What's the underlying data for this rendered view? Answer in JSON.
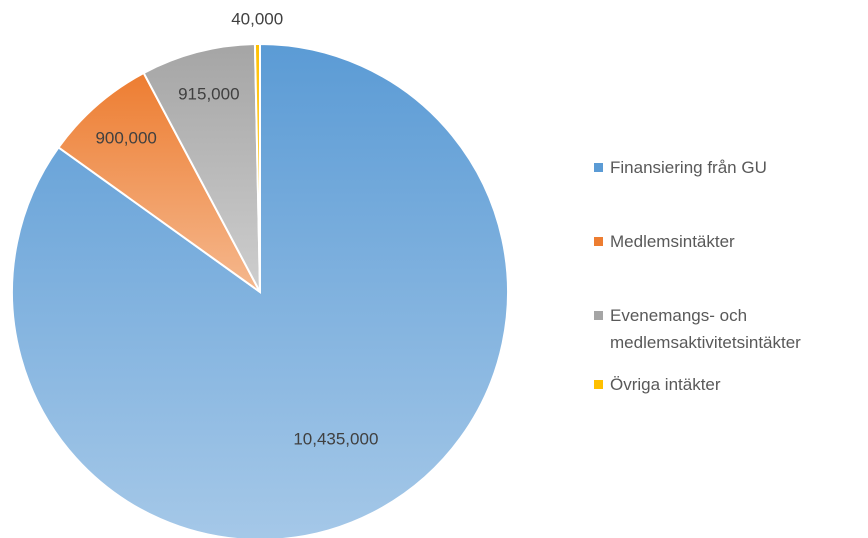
{
  "chart_data": {
    "type": "pie",
    "categories": [
      "Finansiering från GU",
      "Medlemsintäkter",
      "Evenemangs- och medlemsaktivitetsintäkter",
      "Övriga intäkter"
    ],
    "values": [
      10435000,
      900000,
      915000,
      40000
    ],
    "value_labels": [
      "10,435,000",
      "900,000",
      "915,000",
      "40,000"
    ],
    "colors": [
      "#5b9bd5",
      "#ed7d31",
      "#a5a5a5",
      "#ffc000"
    ],
    "legend": "right"
  }
}
